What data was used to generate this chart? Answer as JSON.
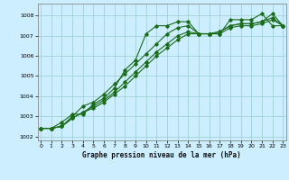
{
  "xlabel": "Graphe pression niveau de la mer (hPa)",
  "bg_color": "#cceeff",
  "grid_color": "#99cccc",
  "line_color": "#1a6b1a",
  "marker": "D",
  "marker_size": 1.8,
  "line_width": 0.8,
  "xlim": [
    -0.3,
    23.3
  ],
  "ylim": [
    1001.8,
    1008.6
  ],
  "yticks": [
    1002,
    1003,
    1004,
    1005,
    1006,
    1007,
    1008
  ],
  "xticks": [
    0,
    1,
    2,
    3,
    4,
    5,
    6,
    7,
    8,
    9,
    10,
    11,
    12,
    13,
    14,
    15,
    16,
    17,
    18,
    19,
    20,
    21,
    22,
    23
  ],
  "series": [
    [
      1002.4,
      1002.4,
      1002.7,
      1003.1,
      1003.1,
      1003.6,
      1003.9,
      1004.4,
      1005.3,
      1005.8,
      1007.1,
      1007.5,
      1007.5,
      1007.7,
      1007.7,
      1007.1,
      1007.1,
      1007.1,
      1007.8,
      1007.8,
      1007.8,
      1008.1,
      1007.5,
      1007.5
    ],
    [
      1002.4,
      1002.4,
      1002.5,
      1003.0,
      1003.5,
      1003.7,
      1004.1,
      1004.6,
      1005.1,
      1005.6,
      1006.1,
      1006.6,
      1007.1,
      1007.4,
      1007.5,
      1007.1,
      1007.1,
      1007.2,
      1007.5,
      1007.6,
      1007.6,
      1007.7,
      1008.1,
      1007.5
    ],
    [
      1002.4,
      1002.4,
      1002.5,
      1002.9,
      1003.2,
      1003.5,
      1003.8,
      1004.2,
      1004.7,
      1005.2,
      1005.7,
      1006.2,
      1006.6,
      1007.0,
      1007.2,
      1007.1,
      1007.1,
      1007.2,
      1007.5,
      1007.6,
      1007.6,
      1007.7,
      1007.9,
      1007.5
    ],
    [
      1002.4,
      1002.4,
      1002.5,
      1002.9,
      1003.2,
      1003.4,
      1003.7,
      1004.1,
      1004.5,
      1005.0,
      1005.5,
      1006.0,
      1006.4,
      1006.8,
      1007.1,
      1007.1,
      1007.1,
      1007.1,
      1007.4,
      1007.5,
      1007.5,
      1007.6,
      1007.8,
      1007.5
    ]
  ]
}
